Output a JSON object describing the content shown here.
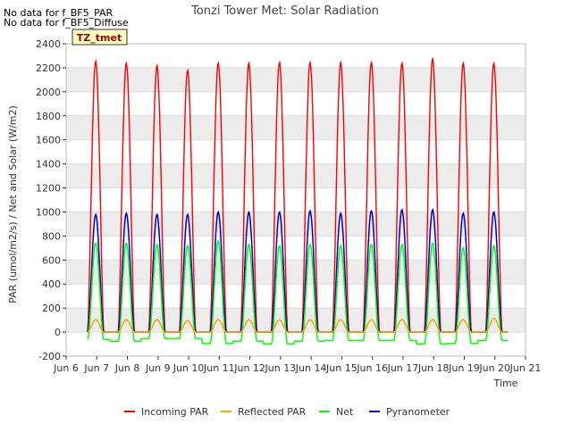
{
  "header": {
    "no_data_1": "No data for f_BF5_PAR",
    "no_data_2": "No data for f_BF5_Diffuse",
    "site_badge": "TZ_tmet"
  },
  "chart_data": {
    "type": "line",
    "title": "Tonzi Tower Met: Solar Radiation",
    "xlabel": "Time",
    "ylabel": "PAR (umol/m2/s) / Net and Solar (W/m2)",
    "xlim": [
      6,
      21
    ],
    "ylim": [
      -200,
      2400
    ],
    "x_ticks": [
      6,
      7,
      8,
      9,
      10,
      11,
      12,
      13,
      14,
      15,
      16,
      17,
      18,
      19,
      20,
      21
    ],
    "x_tick_labels": [
      "Jun 6",
      "Jun 7",
      "Jun 8",
      "Jun 9",
      "Jun 10",
      "Jun 11",
      "Jun 12",
      "Jun 13",
      "Jun 14",
      "Jun 15",
      "Jun 16",
      "Jun 17",
      "Jun 18",
      "Jun 19",
      "Jun 20",
      "Jun 21"
    ],
    "y_ticks": [
      -200,
      0,
      200,
      400,
      600,
      800,
      1000,
      1200,
      1400,
      1600,
      1800,
      2000,
      2200,
      2400
    ],
    "y_tick_labels": [
      "-200",
      "0",
      "200",
      "400",
      "600",
      "800",
      "1000",
      "1200",
      "1400",
      "1600",
      "1800",
      "2000",
      "2200",
      "2400"
    ],
    "grid_bands": true,
    "legend_position": "bottom",
    "series": [
      {
        "name": "Incoming PAR",
        "color": "#ff0000",
        "daily_peaks": [
          2255,
          2240,
          2220,
          2180,
          2240,
          2240,
          2245,
          2245,
          2245,
          2245,
          2240,
          2275,
          2240,
          2240
        ]
      },
      {
        "name": "Reflected PAR",
        "color": "#ffa500",
        "daily_peaks": [
          105,
          103,
          103,
          95,
          103,
          103,
          103,
          103,
          103,
          103,
          105,
          105,
          103,
          115
        ]
      },
      {
        "name": "Net",
        "color": "#00ff00",
        "daily_peaks": [
          740,
          740,
          730,
          720,
          760,
          730,
          720,
          730,
          720,
          730,
          730,
          740,
          700,
          720
        ],
        "night_values": [
          -60,
          -75,
          -55,
          -55,
          -95,
          -75,
          -100,
          -75,
          -70,
          -70,
          -70,
          -100,
          -95,
          -70,
          -70
        ]
      },
      {
        "name": "Pyranometer",
        "color": "#0000cc",
        "daily_peaks": [
          980,
          990,
          980,
          980,
          1000,
          1000,
          1000,
          1010,
          990,
          1010,
          1020,
          1020,
          990,
          1000
        ]
      }
    ]
  }
}
